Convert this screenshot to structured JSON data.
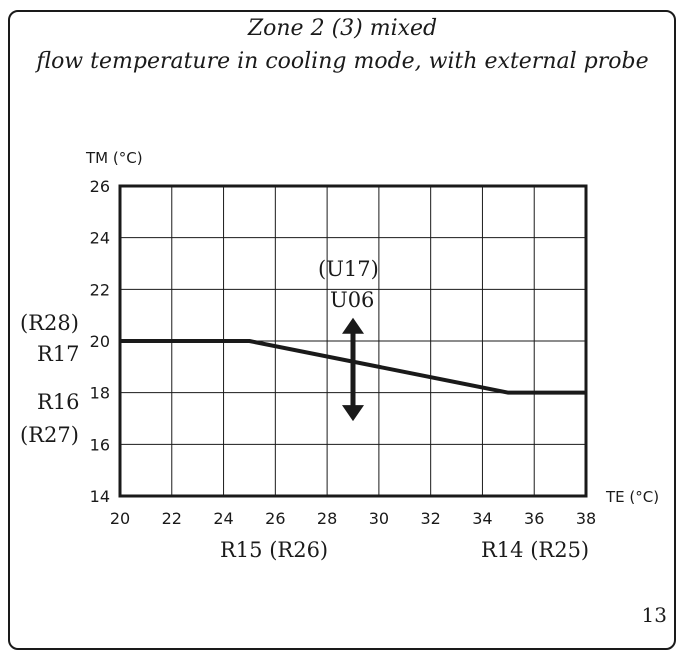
{
  "chart_data": {
    "type": "line",
    "title_line1": "Zone 2 (3) mixed",
    "title_line2": "flow temperature in cooling mode, with external probe",
    "ylabel": "TM (°C)",
    "xlabel": "TE (°C)",
    "x_ticks": [
      "20",
      "22",
      "24",
      "26",
      "28",
      "30",
      "32",
      "34",
      "36",
      "38"
    ],
    "y_ticks": [
      "14",
      "16",
      "18",
      "20",
      "22",
      "24",
      "26"
    ],
    "xlim": [
      20,
      38
    ],
    "ylim": [
      14,
      26
    ],
    "grid": true,
    "series": [
      {
        "x": [
          20,
          25,
          35,
          38
        ],
        "y": [
          20,
          20,
          18,
          18
        ]
      }
    ],
    "arrow": {
      "x": 29,
      "y_from": 16.9,
      "y_to": 20.9
    },
    "annotations": {
      "arrow_label_top": "(U17)",
      "arrow_label_bottom": "U06",
      "left_upper_1": "(R28)",
      "left_upper_2": "R17",
      "left_lower_1": "R16",
      "left_lower_2": "(R27)",
      "bottom_left": "R15 (R26)",
      "bottom_right": "R14 (R25)"
    }
  },
  "page_number": "13"
}
